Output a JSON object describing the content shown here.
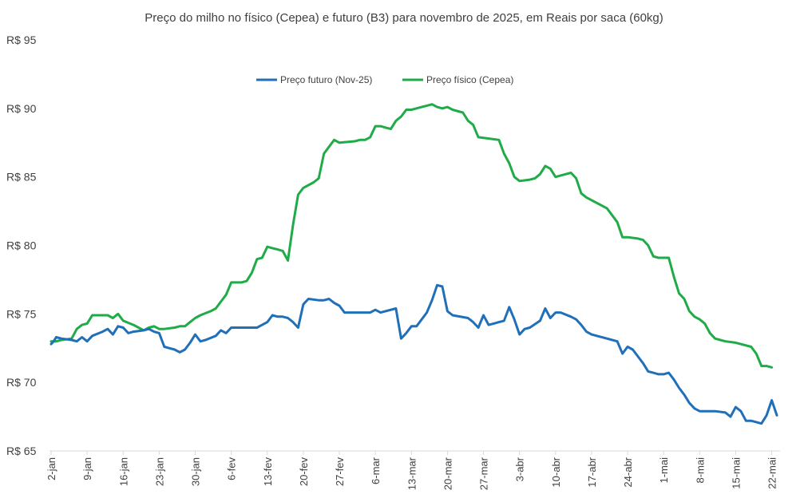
{
  "chart_data": {
    "type": "line",
    "title": "Preço do milho no físico (Cepea) e futuro (B3) para novembro de 2025, em Reais por saca (60kg)",
    "xlabel": "",
    "ylabel": "",
    "ylim": [
      65,
      95
    ],
    "yticks": [
      65,
      70,
      75,
      80,
      85,
      90,
      95
    ],
    "ytick_labels": [
      "R$ 65",
      "R$ 70",
      "R$ 75",
      "R$ 80",
      "R$ 85",
      "R$ 90",
      "R$ 95"
    ],
    "xlim": [
      2,
      143
    ],
    "x_ticks": [
      {
        "label": "2-jan",
        "day": 2
      },
      {
        "label": "9-jan",
        "day": 9
      },
      {
        "label": "16-jan",
        "day": 16
      },
      {
        "label": "23-jan",
        "day": 23
      },
      {
        "label": "30-jan",
        "day": 30
      },
      {
        "label": "6-fev",
        "day": 37
      },
      {
        "label": "13-fev",
        "day": 44
      },
      {
        "label": "20-fev",
        "day": 51
      },
      {
        "label": "27-fev",
        "day": 58
      },
      {
        "label": "6-mar",
        "day": 65
      },
      {
        "label": "13-mar",
        "day": 72
      },
      {
        "label": "20-mar",
        "day": 79
      },
      {
        "label": "27-mar",
        "day": 86
      },
      {
        "label": "3-abr",
        "day": 93
      },
      {
        "label": "10-abr",
        "day": 100
      },
      {
        "label": "17-abr",
        "day": 107
      },
      {
        "label": "24-abr",
        "day": 114
      },
      {
        "label": "1-mai",
        "day": 121
      },
      {
        "label": "8-mai",
        "day": 128
      },
      {
        "label": "15-mai",
        "day": 135
      },
      {
        "label": "22-mai",
        "day": 142
      }
    ],
    "grid": false,
    "legend_position": "top-center",
    "series": [
      {
        "name": "Preço futuro (Nov-25)",
        "color": "#1f6fb9",
        "points": [
          [
            2,
            72.8
          ],
          [
            2.5,
            73.0
          ],
          [
            3,
            73.3
          ],
          [
            4,
            73.2
          ],
          [
            6,
            73.1
          ],
          [
            7,
            73.0
          ],
          [
            8,
            73.3
          ],
          [
            9,
            73.0
          ],
          [
            10,
            73.4
          ],
          [
            12,
            73.7
          ],
          [
            13,
            73.9
          ],
          [
            14,
            73.5
          ],
          [
            15,
            74.1
          ],
          [
            16,
            74.0
          ],
          [
            17,
            73.6
          ],
          [
            18,
            73.7
          ],
          [
            20,
            73.8
          ],
          [
            21,
            73.9
          ],
          [
            22,
            73.7
          ],
          [
            23,
            73.6
          ],
          [
            24,
            72.6
          ],
          [
            25,
            72.5
          ],
          [
            26,
            72.4
          ],
          [
            27,
            72.2
          ],
          [
            28,
            72.4
          ],
          [
            29,
            72.9
          ],
          [
            30,
            73.5
          ],
          [
            31,
            73.0
          ],
          [
            32,
            73.1
          ],
          [
            34,
            73.4
          ],
          [
            35,
            73.8
          ],
          [
            36,
            73.6
          ],
          [
            37,
            74.0
          ],
          [
            39,
            74.0
          ],
          [
            40,
            74.0
          ],
          [
            42,
            74.0
          ],
          [
            43,
            74.2
          ],
          [
            44,
            74.4
          ],
          [
            45,
            74.9
          ],
          [
            46,
            74.8
          ],
          [
            47,
            74.8
          ],
          [
            48,
            74.7
          ],
          [
            49,
            74.4
          ],
          [
            50,
            74.0
          ],
          [
            51,
            75.7
          ],
          [
            52,
            76.1
          ],
          [
            54,
            76.0
          ],
          [
            55,
            76.0
          ],
          [
            56,
            76.1
          ],
          [
            57,
            75.8
          ],
          [
            58,
            75.6
          ],
          [
            59,
            75.1
          ],
          [
            61,
            75.1
          ],
          [
            62,
            75.1
          ],
          [
            63,
            75.1
          ],
          [
            64,
            75.1
          ],
          [
            65,
            75.3
          ],
          [
            66,
            75.1
          ],
          [
            69,
            75.4
          ],
          [
            70,
            73.2
          ],
          [
            71,
            73.6
          ],
          [
            72,
            74.1
          ],
          [
            73,
            74.1
          ],
          [
            75,
            75.1
          ],
          [
            76,
            76.0
          ],
          [
            77,
            77.1
          ],
          [
            78,
            77.0
          ],
          [
            79,
            75.2
          ],
          [
            80,
            74.9
          ],
          [
            83,
            74.7
          ],
          [
            84,
            74.4
          ],
          [
            85,
            74.0
          ],
          [
            86,
            74.9
          ],
          [
            87,
            74.2
          ],
          [
            88,
            74.3
          ],
          [
            89,
            74.4
          ],
          [
            90,
            74.5
          ],
          [
            91,
            75.5
          ],
          [
            92,
            74.6
          ],
          [
            93,
            73.5
          ],
          [
            94,
            73.9
          ],
          [
            95,
            74.0
          ],
          [
            97,
            74.5
          ],
          [
            98,
            75.4
          ],
          [
            99,
            74.7
          ],
          [
            100,
            75.1
          ],
          [
            101,
            75.1
          ],
          [
            103,
            74.8
          ],
          [
            104,
            74.6
          ],
          [
            105,
            74.2
          ],
          [
            106,
            73.7
          ],
          [
            107,
            73.5
          ],
          [
            108,
            73.4
          ],
          [
            112,
            73.0
          ],
          [
            113,
            72.1
          ],
          [
            114,
            72.6
          ],
          [
            115,
            72.4
          ],
          [
            116,
            71.9
          ],
          [
            117,
            71.4
          ],
          [
            118,
            70.8
          ],
          [
            119,
            70.7
          ],
          [
            120,
            70.6
          ],
          [
            121,
            70.6
          ],
          [
            122,
            70.7
          ],
          [
            123,
            70.2
          ],
          [
            124,
            69.6
          ],
          [
            125,
            69.1
          ],
          [
            126,
            68.5
          ],
          [
            127,
            68.1
          ],
          [
            128,
            67.9
          ],
          [
            129,
            67.9
          ],
          [
            131,
            67.9
          ],
          [
            133,
            67.8
          ],
          [
            134,
            67.5
          ],
          [
            135,
            68.2
          ],
          [
            136,
            67.9
          ],
          [
            137,
            67.2
          ],
          [
            138,
            67.2
          ],
          [
            140,
            67.0
          ],
          [
            141,
            67.6
          ],
          [
            142,
            68.7
          ],
          [
            143,
            67.6
          ]
        ]
      },
      {
        "name": "Preço físico (Cepea)",
        "color": "#1fab47",
        "points": [
          [
            2,
            73.0
          ],
          [
            3,
            73.0
          ],
          [
            4,
            73.1
          ],
          [
            6,
            73.2
          ],
          [
            7,
            73.9
          ],
          [
            8,
            74.2
          ],
          [
            9,
            74.3
          ],
          [
            10,
            74.9
          ],
          [
            11,
            74.9
          ],
          [
            12,
            74.9
          ],
          [
            13,
            74.9
          ],
          [
            14,
            74.7
          ],
          [
            15,
            75.0
          ],
          [
            16,
            74.5
          ],
          [
            18,
            74.2
          ],
          [
            19,
            74.0
          ],
          [
            20,
            73.8
          ],
          [
            21,
            74.0
          ],
          [
            22,
            74.1
          ],
          [
            23,
            73.9
          ],
          [
            24,
            73.9
          ],
          [
            26,
            74.0
          ],
          [
            27,
            74.1
          ],
          [
            28,
            74.1
          ],
          [
            29,
            74.4
          ],
          [
            30,
            74.7
          ],
          [
            31,
            74.9
          ],
          [
            33,
            75.2
          ],
          [
            34,
            75.4
          ],
          [
            35,
            75.9
          ],
          [
            36,
            76.4
          ],
          [
            37,
            77.3
          ],
          [
            39,
            77.3
          ],
          [
            40,
            77.4
          ],
          [
            41,
            78.0
          ],
          [
            42,
            79.0
          ],
          [
            43,
            79.1
          ],
          [
            44,
            79.9
          ],
          [
            45,
            79.8
          ],
          [
            46,
            79.7
          ],
          [
            47,
            79.6
          ],
          [
            48,
            78.9
          ],
          [
            49,
            81.5
          ],
          [
            50,
            83.7
          ],
          [
            51,
            84.2
          ],
          [
            52,
            84.4
          ],
          [
            53,
            84.6
          ],
          [
            54,
            84.9
          ],
          [
            55,
            86.7
          ],
          [
            56,
            87.2
          ],
          [
            57,
            87.7
          ],
          [
            58,
            87.5
          ],
          [
            61,
            87.6
          ],
          [
            62,
            87.7
          ],
          [
            63,
            87.7
          ],
          [
            64,
            87.9
          ],
          [
            65,
            88.7
          ],
          [
            66,
            88.7
          ],
          [
            67,
            88.6
          ],
          [
            68,
            88.5
          ],
          [
            69,
            89.1
          ],
          [
            70,
            89.4
          ],
          [
            71,
            89.9
          ],
          [
            72,
            89.9
          ],
          [
            73,
            90.0
          ],
          [
            74,
            90.1
          ],
          [
            75,
            90.2
          ],
          [
            76,
            90.3
          ],
          [
            77,
            90.1
          ],
          [
            78,
            90.0
          ],
          [
            79,
            90.1
          ],
          [
            80,
            89.9
          ],
          [
            82,
            89.7
          ],
          [
            83,
            89.1
          ],
          [
            84,
            88.8
          ],
          [
            85,
            87.9
          ],
          [
            89,
            87.7
          ],
          [
            90,
            86.7
          ],
          [
            91,
            86.0
          ],
          [
            92,
            85.0
          ],
          [
            93,
            84.7
          ],
          [
            95,
            84.8
          ],
          [
            96,
            84.9
          ],
          [
            97,
            85.2
          ],
          [
            98,
            85.8
          ],
          [
            99,
            85.6
          ],
          [
            100,
            85.0
          ],
          [
            102,
            85.2
          ],
          [
            103,
            85.3
          ],
          [
            104,
            84.9
          ],
          [
            105,
            83.8
          ],
          [
            106,
            83.5
          ],
          [
            110,
            82.7
          ],
          [
            111,
            82.2
          ],
          [
            112,
            81.7
          ],
          [
            113,
            80.6
          ],
          [
            114,
            80.6
          ],
          [
            116,
            80.5
          ],
          [
            117,
            80.4
          ],
          [
            118,
            80.0
          ],
          [
            119,
            79.2
          ],
          [
            120,
            79.1
          ],
          [
            121,
            79.1
          ],
          [
            122,
            79.1
          ],
          [
            123,
            77.7
          ],
          [
            124,
            76.5
          ],
          [
            125,
            76.1
          ],
          [
            126,
            75.2
          ],
          [
            127,
            74.8
          ],
          [
            128,
            74.6
          ],
          [
            129,
            74.3
          ],
          [
            130,
            73.6
          ],
          [
            131,
            73.2
          ],
          [
            132,
            73.1
          ],
          [
            133,
            73.0
          ],
          [
            135,
            72.9
          ],
          [
            137,
            72.7
          ],
          [
            138,
            72.6
          ],
          [
            139,
            72.1
          ],
          [
            140,
            71.2
          ],
          [
            141,
            71.2
          ],
          [
            142,
            71.1
          ]
        ]
      }
    ]
  }
}
